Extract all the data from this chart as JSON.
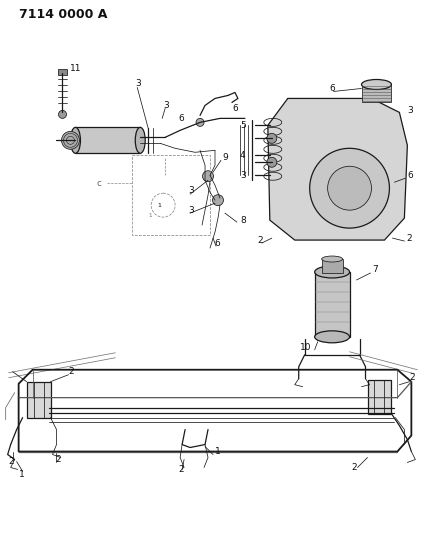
{
  "title": "7114 0000 A",
  "bg_color": "#ffffff",
  "line_color": "#1a1a1a",
  "label_color": "#111111",
  "label_fontsize": 6.5,
  "title_fontsize": 9
}
